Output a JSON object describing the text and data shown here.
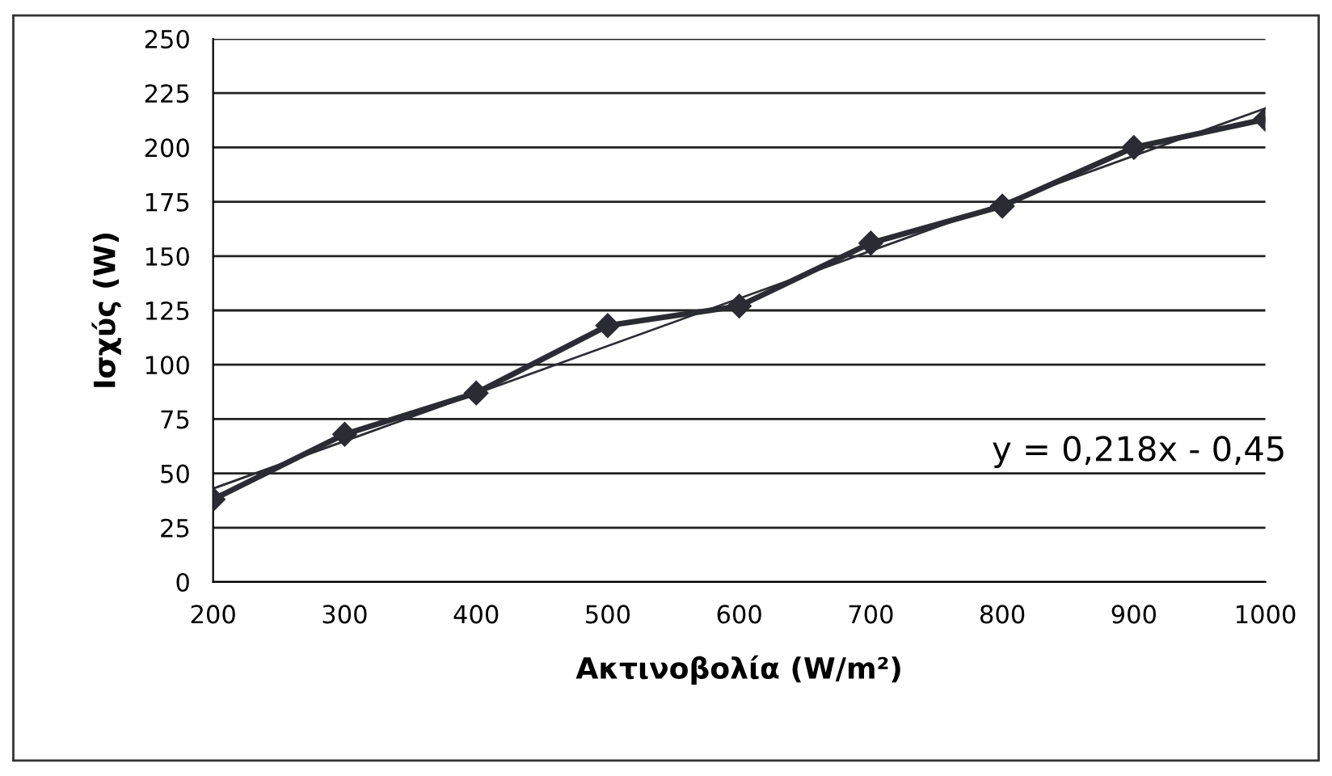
{
  "chart_data": {
    "type": "line",
    "xlabel": "Ακτινοβολία (W/m²)",
    "ylabel": "Ισχύς (W)",
    "x": [
      200,
      300,
      400,
      500,
      600,
      700,
      800,
      900,
      1000
    ],
    "series": [
      {
        "color": "#2b2b33",
        "values": [
          38,
          68,
          87,
          118,
          127,
          156,
          173,
          200,
          213
        ],
        "marker": "diamond"
      },
      {
        "type": "line",
        "color": "#2b2b33",
        "x": [
          200,
          1000
        ],
        "values": [
          43,
          218
        ],
        "marker": "none",
        "line_style": "solid"
      }
    ],
    "annotations": [
      "y = 0,218x - 0,45"
    ],
    "xlim": [
      200,
      1000
    ],
    "xticks": [
      200,
      300,
      400,
      500,
      600,
      700,
      800,
      900,
      1000
    ],
    "ylim": [
      0,
      250
    ],
    "yticks": [
      0,
      25,
      50,
      75,
      100,
      125,
      150,
      175,
      200,
      225,
      250
    ],
    "grid": "y",
    "legend": false
  }
}
